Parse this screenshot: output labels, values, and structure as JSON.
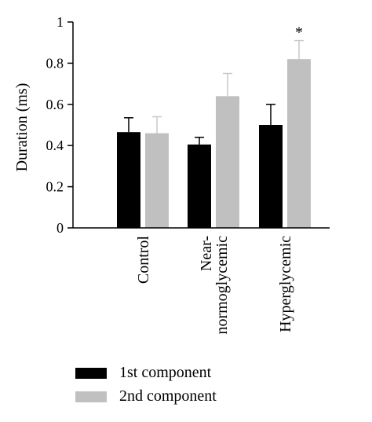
{
  "chart_data": {
    "type": "bar",
    "ylabel": "Duration (ms)",
    "ylim": [
      0,
      1
    ],
    "yticks": [
      "0",
      "0.2",
      "0.4",
      "0.6",
      "0.8",
      "1"
    ],
    "categories": [
      "Control",
      "Near-\nnormoglycemic",
      "Hyperglycemic"
    ],
    "series": [
      {
        "name": "1st component",
        "values": [
          0.465,
          0.405,
          0.5
        ],
        "errors": [
          0.07,
          0.035,
          0.1
        ]
      },
      {
        "name": "2nd component",
        "values": [
          0.46,
          0.64,
          0.82
        ],
        "errors": [
          0.08,
          0.11,
          0.09
        ]
      }
    ],
    "annotations": [
      {
        "category": 2,
        "series": 1,
        "text": "*"
      }
    ],
    "colors": {
      "series1": "#000000",
      "series2": "#c0c0c0",
      "error_bar": "#c8c8c8",
      "axis": "#000000"
    },
    "grid": false,
    "legend": "bottom-left"
  }
}
